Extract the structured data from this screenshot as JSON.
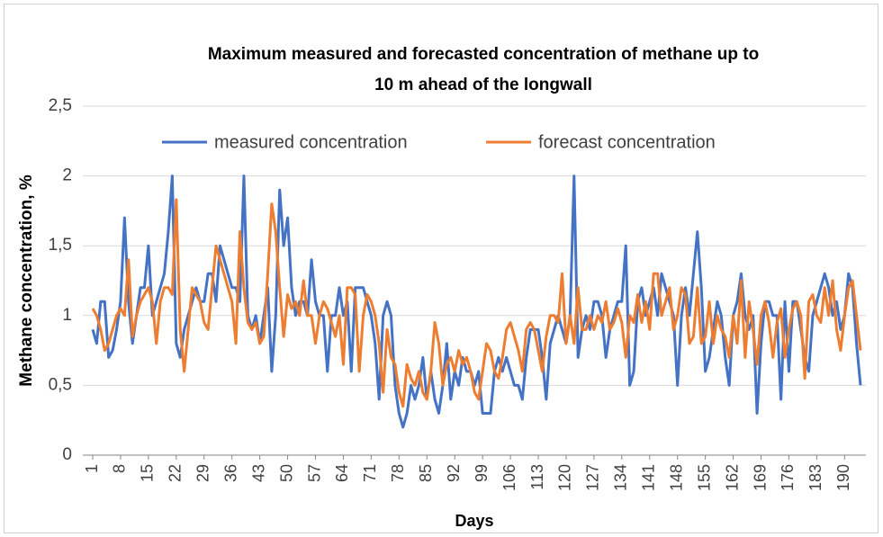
{
  "chart_data": {
    "type": "line",
    "title": [
      "Maximum measured and forecasted concentration of methane up to",
      "10 m ahead of the longwall"
    ],
    "x_label": "Days",
    "y_label": "Methane concentration, %",
    "x": [
      1,
      2,
      3,
      4,
      5,
      6,
      7,
      8,
      9,
      10,
      11,
      12,
      13,
      14,
      15,
      16,
      17,
      18,
      19,
      20,
      21,
      22,
      23,
      24,
      25,
      26,
      27,
      28,
      29,
      30,
      31,
      32,
      33,
      34,
      35,
      36,
      37,
      38,
      39,
      40,
      41,
      42,
      43,
      44,
      45,
      46,
      47,
      48,
      49,
      50,
      51,
      52,
      53,
      54,
      55,
      56,
      57,
      58,
      59,
      60,
      61,
      62,
      63,
      64,
      65,
      66,
      67,
      68,
      69,
      70,
      71,
      72,
      73,
      74,
      75,
      76,
      77,
      78,
      79,
      80,
      81,
      82,
      83,
      84,
      85,
      86,
      87,
      88,
      89,
      90,
      91,
      92,
      93,
      94,
      95,
      96,
      97,
      98,
      99,
      100,
      101,
      102,
      103,
      104,
      105,
      106,
      107,
      108,
      109,
      110,
      111,
      112,
      113,
      114,
      115,
      116,
      117,
      118,
      119,
      120,
      121,
      122,
      123,
      124,
      125,
      126,
      127,
      128,
      129,
      130,
      131,
      132,
      133,
      134,
      135,
      136,
      137,
      138,
      139,
      140,
      141,
      142,
      143,
      144,
      145,
      146,
      147,
      148,
      149,
      150,
      151,
      152,
      153,
      154,
      155,
      156,
      157,
      158,
      159,
      160,
      161,
      162,
      163,
      164,
      165,
      166,
      167,
      168,
      169,
      170,
      171,
      172,
      173,
      174,
      175,
      176,
      177,
      178,
      179,
      180,
      181,
      182,
      183,
      184,
      185,
      186,
      187,
      188,
      189,
      190,
      191,
      192,
      193,
      194
    ],
    "series": [
      {
        "name": "measured concentration",
        "color": "#4472c4",
        "values": [
          0.9,
          0.8,
          1.1,
          1.1,
          0.7,
          0.75,
          0.9,
          1.1,
          1.7,
          1.1,
          0.8,
          1.0,
          1.2,
          1.2,
          1.5,
          1.0,
          1.1,
          1.2,
          1.3,
          1.6,
          2.0,
          0.8,
          0.7,
          0.9,
          1.0,
          1.1,
          1.2,
          1.1,
          1.1,
          1.3,
          1.3,
          1.1,
          1.5,
          1.4,
          1.3,
          1.2,
          1.2,
          1.1,
          2.0,
          1.0,
          0.9,
          1.0,
          0.8,
          1.0,
          1.2,
          0.6,
          1.0,
          1.9,
          1.5,
          1.7,
          1.2,
          1.0,
          1.1,
          1.1,
          1.0,
          1.4,
          1.1,
          1.0,
          1.0,
          0.6,
          1.0,
          1.0,
          1.2,
          1.0,
          1.1,
          0.6,
          1.2,
          1.2,
          1.2,
          1.1,
          1.0,
          0.8,
          0.4,
          1.0,
          1.1,
          1.0,
          0.5,
          0.3,
          0.2,
          0.3,
          0.5,
          0.4,
          0.5,
          0.7,
          0.4,
          0.6,
          0.4,
          0.3,
          0.5,
          0.8,
          0.4,
          0.6,
          0.5,
          0.7,
          0.6,
          0.6,
          0.5,
          0.6,
          0.3,
          0.3,
          0.3,
          0.6,
          0.7,
          0.6,
          0.7,
          0.6,
          0.5,
          0.5,
          0.4,
          0.7,
          0.9,
          0.9,
          0.9,
          0.7,
          0.4,
          0.8,
          0.9,
          1.0,
          0.9,
          0.8,
          1.0,
          2.0,
          0.7,
          0.9,
          1.0,
          0.9,
          1.1,
          1.1,
          1.0,
          0.7,
          0.9,
          1.0,
          1.1,
          1.1,
          1.5,
          0.5,
          0.6,
          1.1,
          1.2,
          1.0,
          1.1,
          1.2,
          1.0,
          1.3,
          1.2,
          1.1,
          1.0,
          0.5,
          1.0,
          1.2,
          1.0,
          1.3,
          1.6,
          1.2,
          0.6,
          0.7,
          0.9,
          1.1,
          1.0,
          0.7,
          0.5,
          1.0,
          1.1,
          1.3,
          1.0,
          0.9,
          1.0,
          0.3,
          0.8,
          1.1,
          1.1,
          1.0,
          1.0,
          0.4,
          1.1,
          0.6,
          1.1,
          1.1,
          0.9,
          0.7,
          0.6,
          1.0,
          1.1,
          1.2,
          1.3,
          1.2,
          1.0,
          1.1,
          0.9,
          1.0,
          1.3,
          1.2,
          0.8,
          0.5
        ]
      },
      {
        "name": "forecast concentration",
        "color": "#ed7d31",
        "values": [
          1.05,
          1.0,
          0.9,
          0.75,
          0.8,
          0.9,
          1.0,
          1.05,
          1.0,
          1.4,
          0.85,
          1.0,
          1.1,
          1.15,
          1.2,
          1.1,
          0.8,
          1.1,
          1.2,
          1.2,
          1.15,
          1.83,
          0.9,
          0.6,
          0.9,
          1.2,
          1.15,
          1.1,
          0.95,
          0.9,
          1.2,
          1.5,
          1.4,
          1.3,
          1.2,
          1.1,
          0.8,
          1.6,
          1.2,
          0.95,
          0.9,
          0.95,
          0.8,
          0.85,
          1.3,
          1.8,
          1.6,
          1.2,
          0.85,
          1.15,
          1.05,
          1.1,
          1.0,
          1.25,
          1.0,
          1.0,
          0.8,
          1.0,
          1.1,
          1.05,
          0.95,
          0.85,
          1.0,
          0.65,
          1.2,
          1.2,
          1.15,
          0.6,
          1.0,
          1.15,
          1.1,
          1.0,
          0.8,
          0.45,
          0.9,
          0.7,
          0.65,
          0.45,
          0.35,
          0.65,
          0.55,
          0.5,
          0.6,
          0.45,
          0.4,
          0.6,
          0.95,
          0.8,
          0.5,
          0.65,
          0.7,
          0.6,
          0.75,
          0.65,
          0.7,
          0.6,
          0.45,
          0.4,
          0.6,
          0.8,
          0.75,
          0.6,
          0.55,
          0.7,
          0.9,
          0.95,
          0.85,
          0.75,
          0.6,
          0.9,
          0.95,
          0.9,
          0.75,
          0.6,
          0.85,
          1.0,
          1.0,
          0.95,
          1.3,
          0.8,
          1.0,
          0.8,
          1.2,
          0.9,
          0.9,
          1.0,
          0.9,
          1.0,
          0.95,
          1.1,
          0.9,
          0.95,
          1.05,
          0.95,
          0.7,
          1.0,
          0.95,
          1.15,
          0.95,
          1.1,
          0.9,
          1.3,
          1.3,
          1.0,
          1.1,
          1.2,
          0.9,
          1.0,
          1.2,
          1.15,
          0.8,
          0.85,
          1.2,
          0.8,
          0.85,
          1.1,
          0.8,
          1.0,
          0.9,
          0.85,
          0.7,
          1.0,
          0.8,
          1.25,
          0.7,
          1.1,
          0.9,
          0.65,
          1.0,
          1.1,
          0.95,
          0.7,
          0.95,
          1.05,
          0.7,
          0.9,
          1.05,
          1.1,
          1.0,
          0.55,
          1.1,
          1.15,
          1.0,
          0.95,
          1.2,
          1.0,
          1.25,
          0.9,
          0.75,
          1.0,
          1.2,
          1.25,
          1.0,
          0.75
        ]
      }
    ],
    "xlim": [
      1,
      194
    ],
    "xticks": [
      1,
      8,
      15,
      22,
      29,
      36,
      43,
      50,
      57,
      64,
      71,
      78,
      85,
      92,
      99,
      106,
      113,
      120,
      127,
      134,
      141,
      148,
      155,
      162,
      169,
      176,
      183,
      190
    ],
    "ylim": [
      0,
      2.5
    ],
    "yticks": [
      0,
      {
        "value": 0.5,
        "label": "0,5"
      },
      1,
      {
        "value": 1.5,
        "label": "1,5"
      },
      2,
      {
        "value": 2.5,
        "label": "2,5"
      }
    ],
    "grid": true,
    "legend": "top"
  }
}
